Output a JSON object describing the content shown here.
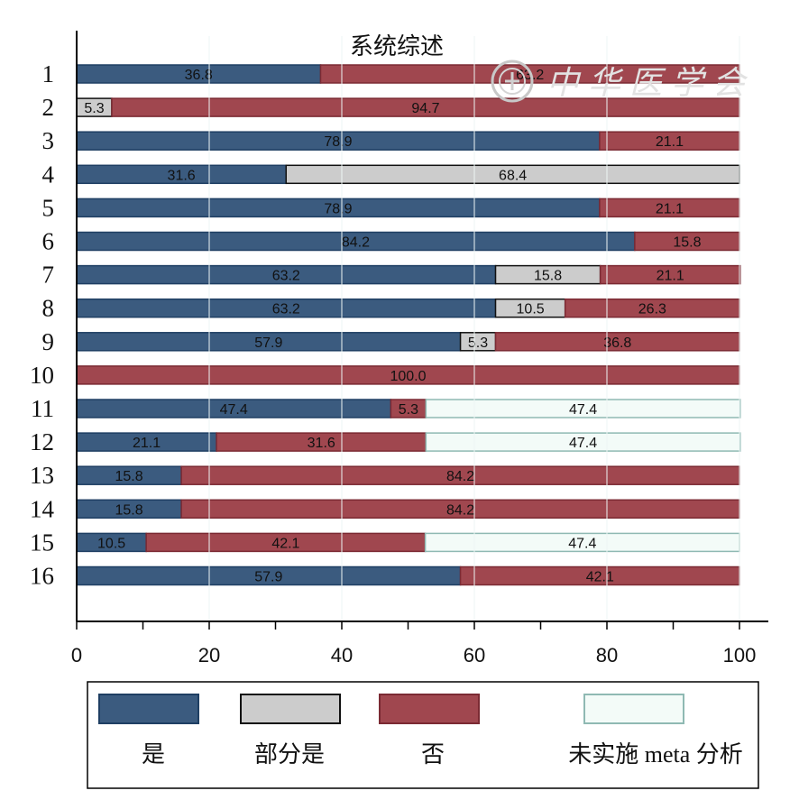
{
  "chart_data": {
    "type": "bar",
    "orientation": "horizontal",
    "stacked": true,
    "title": "系统综述",
    "categories": [
      "1",
      "2",
      "3",
      "4",
      "5",
      "6",
      "7",
      "8",
      "9",
      "10",
      "11",
      "12",
      "13",
      "14",
      "15",
      "16"
    ],
    "xlim": [
      0,
      100
    ],
    "xticks": [
      "0",
      "20",
      "40",
      "60",
      "80",
      "100"
    ],
    "series": [
      {
        "name": "是",
        "color": "#3b5b7f",
        "border": "#1f3f63",
        "values": [
          36.8,
          0,
          78.9,
          31.6,
          78.9,
          84.2,
          63.2,
          63.2,
          57.9,
          0,
          47.4,
          21.1,
          15.8,
          15.8,
          10.5,
          57.9
        ]
      },
      {
        "name": "部分是",
        "color": "#cccccc",
        "border": "#111111",
        "values": [
          0,
          5.3,
          0,
          68.4,
          0,
          0,
          15.8,
          10.5,
          5.3,
          0,
          0,
          0,
          0,
          0,
          0,
          0
        ]
      },
      {
        "name": "否",
        "color": "#a0474f",
        "border": "#7b2a33",
        "values": [
          63.2,
          94.7,
          21.1,
          0,
          21.1,
          15.8,
          21.1,
          26.3,
          36.8,
          100.0,
          5.3,
          31.6,
          84.2,
          84.2,
          42.1,
          42.1
        ]
      },
      {
        "name": "未实施 meta 分析",
        "color": "#f3fbf8",
        "border": "#8fb9b3",
        "values": [
          0,
          0,
          0,
          0,
          0,
          0,
          0,
          0,
          0,
          0,
          47.4,
          47.4,
          0,
          0,
          47.4,
          0
        ]
      }
    ],
    "legend_position": "bottom",
    "grid": false
  },
  "watermark_text": "中华医学会"
}
